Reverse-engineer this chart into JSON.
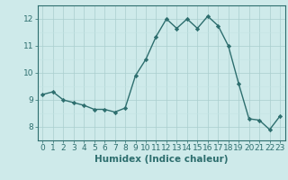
{
  "x": [
    0,
    1,
    2,
    3,
    4,
    5,
    6,
    7,
    8,
    9,
    10,
    11,
    12,
    13,
    14,
    15,
    16,
    17,
    18,
    19,
    20,
    21,
    22,
    23
  ],
  "y": [
    9.2,
    9.3,
    9.0,
    8.9,
    8.8,
    8.65,
    8.65,
    8.55,
    8.7,
    9.9,
    10.5,
    11.35,
    12.0,
    11.65,
    12.0,
    11.65,
    12.1,
    11.75,
    11.0,
    9.6,
    8.3,
    8.25,
    7.9,
    8.4
  ],
  "line_color": "#2d6e6e",
  "marker": "D",
  "marker_size": 2.2,
  "bg_color": "#ceeaea",
  "grid_color_major": "#aacece",
  "grid_color_minor": "#c4e4e4",
  "xlabel": "Humidex (Indice chaleur)",
  "ylim": [
    7.5,
    12.5
  ],
  "xlim": [
    -0.5,
    23.5
  ],
  "yticks": [
    8,
    9,
    10,
    11,
    12
  ],
  "xticks": [
    0,
    1,
    2,
    3,
    4,
    5,
    6,
    7,
    8,
    9,
    10,
    11,
    12,
    13,
    14,
    15,
    16,
    17,
    18,
    19,
    20,
    21,
    22,
    23
  ],
  "axis_color": "#2d6e6e",
  "tick_color": "#2d6e6e",
  "label_color": "#2d6e6e",
  "xlabel_fontsize": 7.5,
  "tick_fontsize": 6.5,
  "linewidth": 1.0
}
